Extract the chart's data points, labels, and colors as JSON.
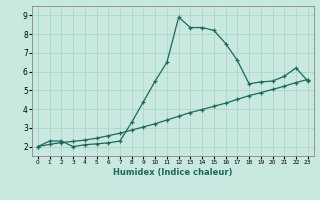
{
  "title": "",
  "xlabel": "Humidex (Indice chaleur)",
  "bg_color": "#c8e8e0",
  "grid_color": "#b0d8cc",
  "line_color": "#1a6b5a",
  "xlim": [
    -0.5,
    23.5
  ],
  "ylim": [
    1.5,
    9.5
  ],
  "yticks": [
    2,
    3,
    4,
    5,
    6,
    7,
    8,
    9
  ],
  "xticks": [
    0,
    1,
    2,
    3,
    4,
    5,
    6,
    7,
    8,
    9,
    10,
    11,
    12,
    13,
    14,
    15,
    16,
    17,
    18,
    19,
    20,
    21,
    22,
    23
  ],
  "line1_x": [
    0,
    1,
    2,
    3,
    4,
    5,
    6,
    7,
    8,
    9,
    10,
    11,
    12,
    13,
    14,
    15,
    16,
    17,
    18,
    19,
    20,
    21,
    22,
    23
  ],
  "line1_y": [
    2.0,
    2.3,
    2.3,
    2.0,
    2.1,
    2.15,
    2.2,
    2.3,
    3.3,
    4.4,
    5.5,
    6.5,
    8.9,
    8.35,
    8.35,
    8.2,
    7.5,
    6.6,
    5.35,
    5.45,
    5.5,
    5.75,
    6.2,
    5.5
  ],
  "line2_x": [
    0,
    1,
    2,
    3,
    4,
    5,
    6,
    7,
    8,
    9,
    10,
    11,
    12,
    13,
    14,
    15,
    16,
    17,
    18,
    19,
    20,
    21,
    22,
    23
  ],
  "line2_y": [
    2.0,
    2.12,
    2.22,
    2.28,
    2.35,
    2.45,
    2.58,
    2.72,
    2.88,
    3.05,
    3.22,
    3.42,
    3.62,
    3.82,
    3.98,
    4.15,
    4.32,
    4.52,
    4.72,
    4.88,
    5.05,
    5.22,
    5.42,
    5.58
  ]
}
